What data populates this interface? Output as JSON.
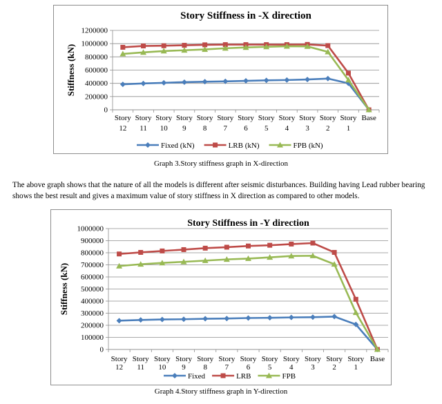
{
  "caption1": "Graph 3.Story stiffness graph in X-direction",
  "paragraph": "The above graph shows that the nature of all the models is different after seismic disturbances. Building having Lead rubber bearing shows the best result and gives a maximum value of story stiffness in X direction as compared to other models.",
  "caption2": "Graph 4.Story stiffness graph in Y-direction",
  "chart_data": [
    {
      "type": "line",
      "title": "Story Stiffness in -X direction",
      "ylabel": "Stiffness (kN)",
      "xlabel": "",
      "categories": [
        [
          "Story",
          "12"
        ],
        [
          "Story",
          "11"
        ],
        [
          "Story",
          "10"
        ],
        [
          "Story",
          "9"
        ],
        [
          "Story",
          "8"
        ],
        [
          "Story",
          "7"
        ],
        [
          "Story",
          "6"
        ],
        [
          "Story",
          "5"
        ],
        [
          "Story",
          "4"
        ],
        [
          "Story",
          "3"
        ],
        [
          "Story",
          "2"
        ],
        [
          "Story",
          "1"
        ],
        [
          "Base",
          ""
        ]
      ],
      "ylim": [
        0,
        1200000
      ],
      "yticks": [
        "0",
        "200000",
        "400000",
        "600000",
        "800000",
        "1000000",
        "1200000"
      ],
      "grid": true,
      "legend": "bottom",
      "series": [
        {
          "name": "Fixed (kN)",
          "color": "#4a7ebb",
          "marker": "diamond",
          "values": [
            385000,
            398000,
            408000,
            418000,
            425000,
            430000,
            438000,
            445000,
            450000,
            458000,
            472000,
            400000,
            0
          ]
        },
        {
          "name": "LRB (kN)",
          "color": "#be4b48",
          "marker": "square",
          "values": [
            945000,
            965000,
            968000,
            975000,
            982000,
            985000,
            985000,
            985000,
            985000,
            988000,
            970000,
            555000,
            0
          ]
        },
        {
          "name": "FPB (kN)",
          "color": "#98b954",
          "marker": "triangle",
          "values": [
            845000,
            868000,
            888000,
            900000,
            912000,
            930000,
            942000,
            952000,
            960000,
            958000,
            875000,
            450000,
            0
          ]
        }
      ]
    },
    {
      "type": "line",
      "title": "Story Stiffness in -Y direction",
      "ylabel": "Stiffness (kN)",
      "xlabel": "",
      "categories": [
        [
          "Story",
          "12"
        ],
        [
          "Story",
          "11"
        ],
        [
          "Story",
          "10"
        ],
        [
          "Story",
          "9"
        ],
        [
          "Story",
          "8"
        ],
        [
          "Story",
          "7"
        ],
        [
          "Story",
          "6"
        ],
        [
          "Story",
          "5"
        ],
        [
          "Story",
          "4"
        ],
        [
          "Story",
          "3"
        ],
        [
          "Story",
          "2"
        ],
        [
          "Story",
          "1"
        ],
        [
          "Base",
          ""
        ]
      ],
      "ylim": [
        0,
        1000000
      ],
      "yticks": [
        "0",
        "100000",
        "200000",
        "300000",
        "400000",
        "500000",
        "600000",
        "700000",
        "800000",
        "900000",
        "1000000"
      ],
      "grid": true,
      "legend": "bottom",
      "series": [
        {
          "name": "Fixed",
          "color": "#4a7ebb",
          "marker": "diamond",
          "values": [
            238000,
            244000,
            248000,
            250000,
            254000,
            256000,
            260000,
            262000,
            265000,
            267000,
            272000,
            207000,
            0
          ]
        },
        {
          "name": "LRB",
          "color": "#be4b48",
          "marker": "square",
          "values": [
            790000,
            803000,
            815000,
            826000,
            838000,
            846000,
            856000,
            862000,
            872000,
            880000,
            803000,
            415000,
            0
          ]
        },
        {
          "name": "FPB",
          "color": "#98b954",
          "marker": "triangle",
          "values": [
            690000,
            705000,
            716000,
            725000,
            735000,
            745000,
            752000,
            762000,
            773000,
            775000,
            705000,
            305000,
            0
          ]
        }
      ]
    }
  ]
}
